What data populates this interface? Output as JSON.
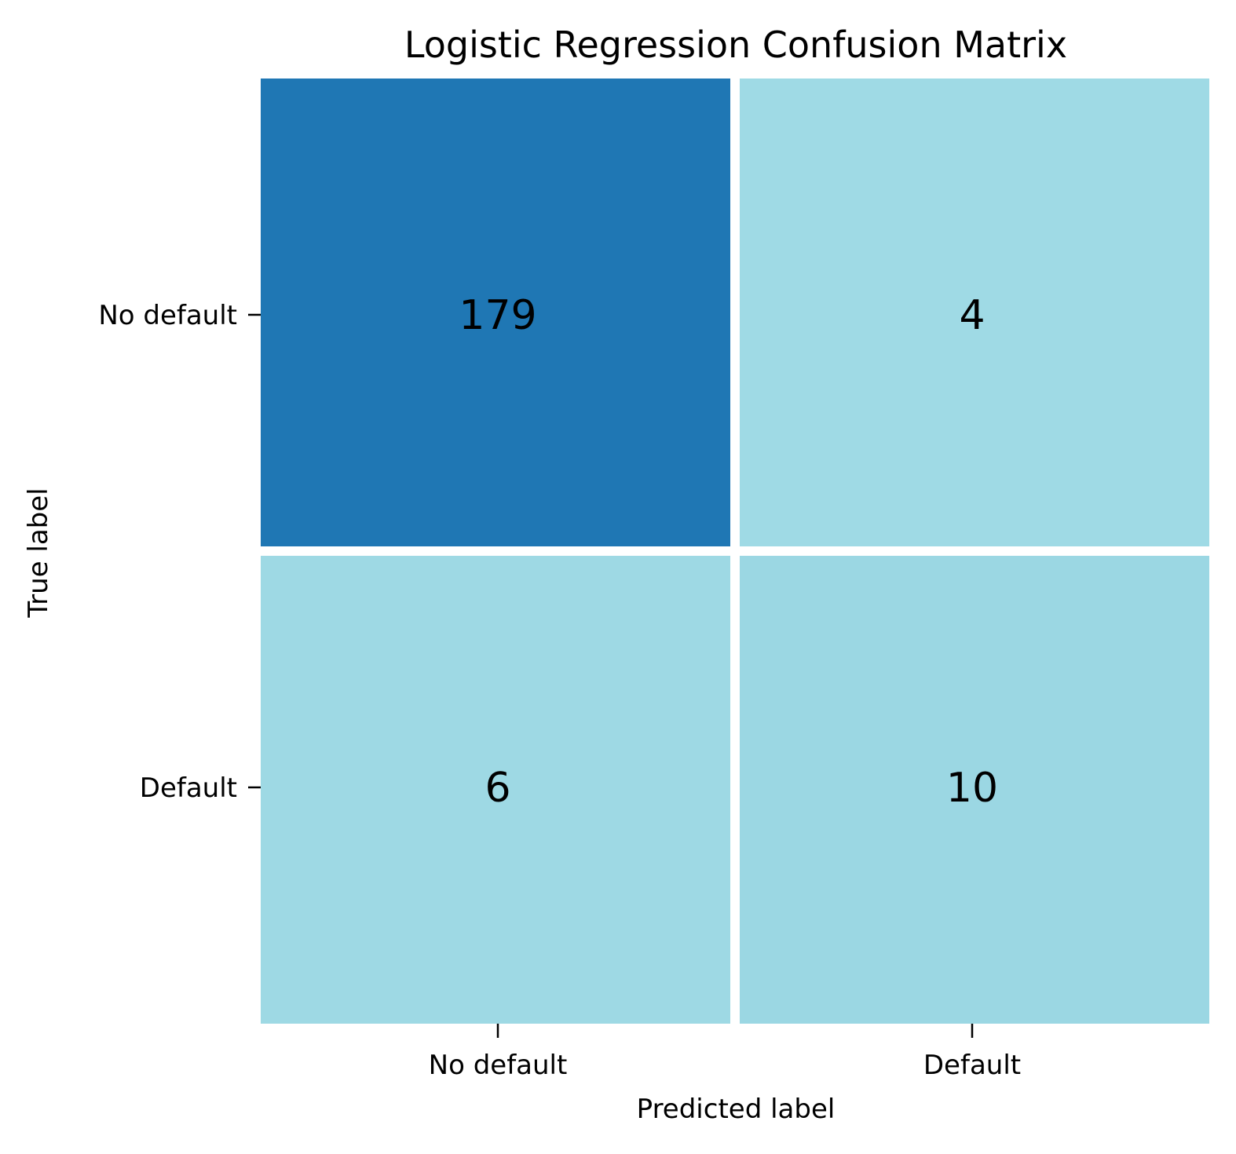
{
  "chart_data": {
    "type": "heatmap",
    "title": "Logistic Regression Confusion Matrix",
    "xlabel": "Predicted label",
    "ylabel": "True label",
    "x_categories": [
      "No default",
      "Default"
    ],
    "y_categories": [
      "No default",
      "Default"
    ],
    "values": [
      [
        179,
        4
      ],
      [
        6,
        10
      ]
    ],
    "grid": false,
    "colormap": {
      "low": "#9fdae5",
      "high": "#1f77b4"
    }
  }
}
